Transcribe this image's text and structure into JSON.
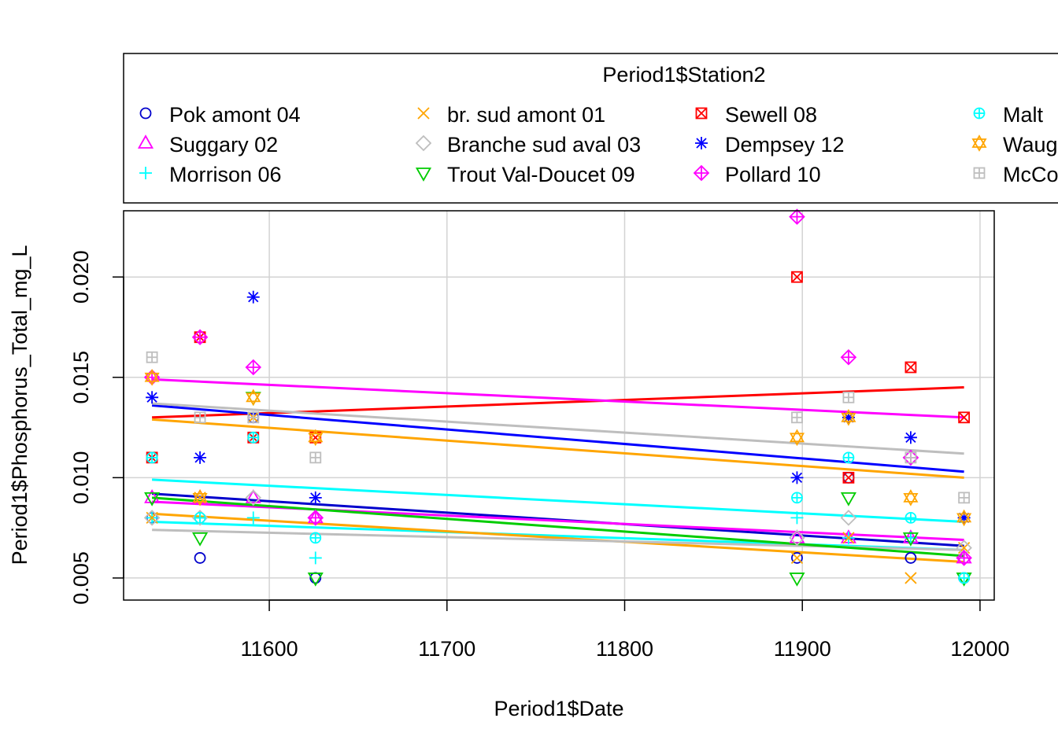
{
  "chart_data": {
    "type": "scatter",
    "title": "",
    "xlabel": "Period1$Date",
    "ylabel": "Period1$Phosphorus_Total_mg_L",
    "xlim": [
      11518,
      12008
    ],
    "ylim": [
      0.0039,
      0.0233
    ],
    "x_ticks": [
      11600,
      11700,
      11800,
      11900,
      12000
    ],
    "x_tick_labels": [
      "11600",
      "11700",
      "11800",
      "11900",
      "12000"
    ],
    "y_ticks": [
      0.005,
      0.01,
      0.015,
      0.02
    ],
    "y_tick_labels": [
      "0.005",
      "0.010",
      "0.015",
      "0.020"
    ],
    "grid": true,
    "legend": {
      "title": "Period1$Station2",
      "placement": "top",
      "columns": 4,
      "entries": [
        {
          "label": "Pok amont 04",
          "color": "#0000cc",
          "symbol": "circle"
        },
        {
          "label": "Suggary 02",
          "color": "#ff00ff",
          "symbol": "triangle"
        },
        {
          "label": "Morrison 06",
          "color": "#00ffff",
          "symbol": "plus"
        },
        {
          "label": "br. sud amont 01",
          "color": "#ffa500",
          "symbol": "x"
        },
        {
          "label": "Branche sud aval 03",
          "color": "#bebebe",
          "symbol": "diamond"
        },
        {
          "label": "Trout Val-Doucet 09",
          "color": "#00cc00",
          "symbol": "triangle-down"
        },
        {
          "label": "Sewell 08",
          "color": "#ff0000",
          "symbol": "square-x"
        },
        {
          "label": "Dempsey 12",
          "color": "#0000ff",
          "symbol": "asterisk"
        },
        {
          "label": "Pollard 10",
          "color": "#ff00ff",
          "symbol": "diamond-plus"
        },
        {
          "label": "Malt",
          "color": "#00ffff",
          "symbol": "circle-plus"
        },
        {
          "label": "Waug",
          "color": "#ffa500",
          "symbol": "star"
        },
        {
          "label": "McCo",
          "color": "#bebebe",
          "symbol": "square-plus"
        }
      ]
    },
    "series": [
      {
        "name": "Pok amont 04",
        "color": "#0000cc",
        "symbol": "circle",
        "points": [
          [
            11534,
            0.008
          ],
          [
            11561,
            0.006
          ],
          [
            11591,
            0.013
          ],
          [
            11626,
            0.005
          ],
          [
            11897,
            0.006
          ],
          [
            11926,
            0.01
          ],
          [
            11961,
            0.006
          ],
          [
            11991,
            0.005
          ]
        ],
        "trend": [
          [
            11534,
            0.0092
          ],
          [
            11991,
            0.0066
          ]
        ]
      },
      {
        "name": "Suggary 02",
        "color": "#ff00ff",
        "symbol": "triangle",
        "points": [
          [
            11534,
            0.009
          ],
          [
            11561,
            0.009
          ],
          [
            11591,
            0.009
          ],
          [
            11626,
            0.008
          ],
          [
            11897,
            0.007
          ],
          [
            11926,
            0.007
          ],
          [
            11961,
            0.007
          ],
          [
            11991,
            0.006
          ]
        ],
        "trend": [
          [
            11534,
            0.0088
          ],
          [
            11991,
            0.0069
          ]
        ]
      },
      {
        "name": "Morrison 06",
        "color": "#00ffff",
        "symbol": "plus",
        "points": [
          [
            11534,
            0.008
          ],
          [
            11561,
            0.008
          ],
          [
            11591,
            0.008
          ],
          [
            11626,
            0.006
          ],
          [
            11897,
            0.008
          ],
          [
            11926,
            0.007
          ],
          [
            11961,
            0.007
          ],
          [
            11991,
            0.006
          ]
        ],
        "trend": [
          [
            11534,
            0.0078
          ],
          [
            11991,
            0.0064
          ]
        ]
      },
      {
        "name": "br. sud amont 01",
        "color": "#ffa500",
        "symbol": "x",
        "points": [
          [
            11534,
            0.008
          ],
          [
            11561,
            0.009
          ],
          [
            11591,
            0.013
          ],
          [
            11626,
            0.012
          ],
          [
            11897,
            0.006
          ],
          [
            11926,
            0.007
          ],
          [
            11961,
            0.005
          ],
          [
            11991,
            0.0065
          ]
        ],
        "trend": [
          [
            11534,
            0.0082
          ],
          [
            11991,
            0.0058
          ]
        ]
      },
      {
        "name": "Branche sud aval 03",
        "color": "#bebebe",
        "symbol": "diamond",
        "points": [
          [
            11534,
            0.008
          ],
          [
            11561,
            0.008
          ],
          [
            11591,
            0.009
          ],
          [
            11626,
            0.008
          ],
          [
            11897,
            0.007
          ],
          [
            11926,
            0.008
          ],
          [
            11961,
            0.011
          ],
          [
            11991,
            0.0065
          ]
        ],
        "trend": [
          [
            11534,
            0.0074
          ],
          [
            11991,
            0.0064
          ]
        ]
      },
      {
        "name": "Trout Val-Doucet 09",
        "color": "#00cc00",
        "symbol": "triangle-down",
        "points": [
          [
            11534,
            0.009
          ],
          [
            11561,
            0.007
          ],
          [
            11591,
            0.014
          ],
          [
            11626,
            0.005
          ],
          [
            11897,
            0.005
          ],
          [
            11926,
            0.009
          ],
          [
            11961,
            0.007
          ],
          [
            11991,
            0.005
          ]
        ],
        "trend": [
          [
            11534,
            0.009
          ],
          [
            11991,
            0.0061
          ]
        ]
      },
      {
        "name": "Sewell 08",
        "color": "#ff0000",
        "symbol": "square-x",
        "points": [
          [
            11534,
            0.011
          ],
          [
            11561,
            0.017
          ],
          [
            11591,
            0.012
          ],
          [
            11626,
            0.012
          ],
          [
            11897,
            0.02
          ],
          [
            11926,
            0.01
          ],
          [
            11961,
            0.0155
          ],
          [
            11991,
            0.013
          ]
        ],
        "trend": [
          [
            11534,
            0.013
          ],
          [
            11991,
            0.0145
          ]
        ]
      },
      {
        "name": "Dempsey 12",
        "color": "#0000ff",
        "symbol": "asterisk",
        "points": [
          [
            11534,
            0.014
          ],
          [
            11561,
            0.011
          ],
          [
            11591,
            0.019
          ],
          [
            11626,
            0.009
          ],
          [
            11897,
            0.01
          ],
          [
            11926,
            0.013
          ],
          [
            11961,
            0.012
          ],
          [
            11991,
            0.008
          ]
        ],
        "trend": [
          [
            11534,
            0.0136
          ],
          [
            11991,
            0.0103
          ]
        ]
      },
      {
        "name": "Pollard 10",
        "color": "#ff00ff",
        "symbol": "diamond-plus",
        "points": [
          [
            11534,
            0.015
          ],
          [
            11561,
            0.017
          ],
          [
            11591,
            0.0155
          ],
          [
            11626,
            0.008
          ],
          [
            11897,
            0.023
          ],
          [
            11926,
            0.016
          ],
          [
            11961,
            0.011
          ],
          [
            11991,
            0.006
          ]
        ],
        "trend": [
          [
            11534,
            0.0149
          ],
          [
            11991,
            0.013
          ]
        ]
      },
      {
        "name": "Malt",
        "color": "#00ffff",
        "symbol": "circle-plus",
        "points": [
          [
            11534,
            0.011
          ],
          [
            11561,
            0.008
          ],
          [
            11591,
            0.012
          ],
          [
            11626,
            0.007
          ],
          [
            11897,
            0.009
          ],
          [
            11926,
            0.011
          ],
          [
            11961,
            0.008
          ],
          [
            11991,
            0.005
          ]
        ],
        "trend": [
          [
            11534,
            0.0099
          ],
          [
            11991,
            0.0078
          ]
        ]
      },
      {
        "name": "Waug",
        "color": "#ffa500",
        "symbol": "star",
        "points": [
          [
            11534,
            0.015
          ],
          [
            11561,
            0.009
          ],
          [
            11591,
            0.014
          ],
          [
            11626,
            0.012
          ],
          [
            11897,
            0.012
          ],
          [
            11926,
            0.013
          ],
          [
            11961,
            0.009
          ],
          [
            11991,
            0.008
          ]
        ],
        "trend": [
          [
            11534,
            0.0129
          ],
          [
            11991,
            0.01
          ]
        ]
      },
      {
        "name": "McCo",
        "color": "#bebebe",
        "symbol": "square-plus",
        "points": [
          [
            11534,
            0.016
          ],
          [
            11561,
            0.013
          ],
          [
            11591,
            0.013
          ],
          [
            11626,
            0.011
          ],
          [
            11897,
            0.013
          ],
          [
            11926,
            0.014
          ],
          [
            11961,
            0.011
          ],
          [
            11991,
            0.009
          ]
        ],
        "trend": [
          [
            11534,
            0.0137
          ],
          [
            11991,
            0.0112
          ]
        ]
      }
    ]
  }
}
